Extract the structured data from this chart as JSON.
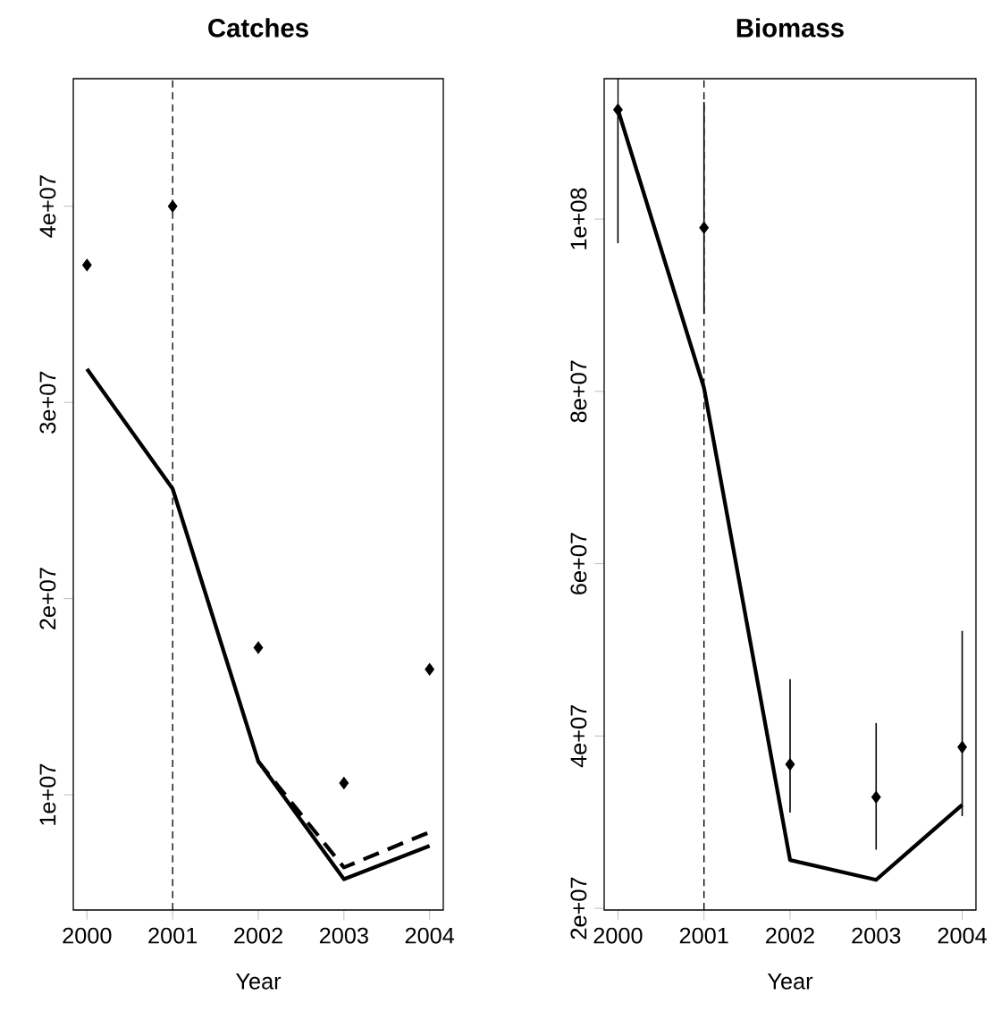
{
  "chart_data": [
    {
      "type": "line",
      "title": "Catches",
      "xlabel": "Year",
      "x": [
        2000,
        2001,
        2002,
        2003,
        2004
      ],
      "xlim": [
        1999.84,
        2004.16
      ],
      "ylim": [
        4130000,
        46500000
      ],
      "xticks": [
        2000,
        2001,
        2002,
        2003,
        2004
      ],
      "yticks": [
        {
          "value": 10000000,
          "label": "1e+07"
        },
        {
          "value": 20000000,
          "label": "2e+07"
        },
        {
          "value": 30000000,
          "label": "3e+07"
        },
        {
          "value": 40000000,
          "label": "4e+07"
        }
      ],
      "series": [
        {
          "type": "scatter",
          "marker": "diamond",
          "color": "#000000",
          "values": [
            37000000,
            40000000,
            17500000,
            10600000,
            16400000
          ]
        },
        {
          "line_style": "solid",
          "color": "#000000",
          "values": [
            31700000,
            25600000,
            11700000,
            5700000,
            7400000
          ]
        },
        {
          "line_style": "dashed",
          "color": "#000000",
          "values": [
            null,
            null,
            11700000,
            6300000,
            8100000
          ]
        }
      ],
      "ref_lines": [
        {
          "axis": "x",
          "value": 2001,
          "line_style": "dashed",
          "color": "#000000"
        }
      ]
    },
    {
      "type": "line",
      "title": "Biomass",
      "xlabel": "Year",
      "x": [
        2000,
        2001,
        2002,
        2003,
        2004
      ],
      "xlim": [
        1999.84,
        2004.16
      ],
      "ylim": [
        19800000,
        116300000
      ],
      "xticks": [
        2000,
        2001,
        2002,
        2003,
        2004
      ],
      "yticks": [
        {
          "value": 20000000,
          "label": "2e+07"
        },
        {
          "value": 40000000,
          "label": "4e+07"
        },
        {
          "value": 60000000,
          "label": "6e+07"
        },
        {
          "value": 80000000,
          "label": "8e+07"
        },
        {
          "value": 100000000,
          "label": "1e+08"
        }
      ],
      "series": [
        {
          "type": "scatter",
          "marker": "diamond",
          "color": "#000000",
          "values": [
            112700000,
            99000000,
            36700000,
            32900000,
            38700000
          ],
          "errors": [
            [
              97200000,
              116300000
            ],
            [
              89000000,
              113600000
            ],
            [
              31100000,
              46600000
            ],
            [
              26800000,
              41500000
            ],
            [
              30700000,
              52200000
            ]
          ]
        },
        {
          "line_style": "solid",
          "color": "#000000",
          "values": [
            112700000,
            80400000,
            25600000,
            23300000,
            32000000
          ]
        }
      ],
      "ref_lines": [
        {
          "axis": "x",
          "value": 2001,
          "line_style": "dashed",
          "color": "#000000"
        }
      ]
    }
  ]
}
